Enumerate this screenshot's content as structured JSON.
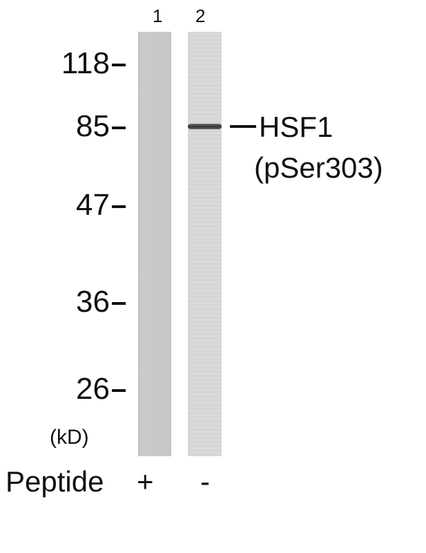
{
  "lanes": [
    {
      "label": "1",
      "peptide": "+"
    },
    {
      "label": "2",
      "peptide": "-"
    }
  ],
  "markers": [
    {
      "value": "118",
      "kd": 118
    },
    {
      "value": "85",
      "kd": 85
    },
    {
      "value": "47",
      "kd": 47
    },
    {
      "value": "36",
      "kd": 36
    },
    {
      "value": "26",
      "kd": 26
    }
  ],
  "unit_label": "(kD)",
  "band": {
    "lane": 2,
    "kd": 85,
    "label_line1": "HSF1",
    "label_line2": "(pSer303)"
  },
  "peptide_label": "Peptide"
}
